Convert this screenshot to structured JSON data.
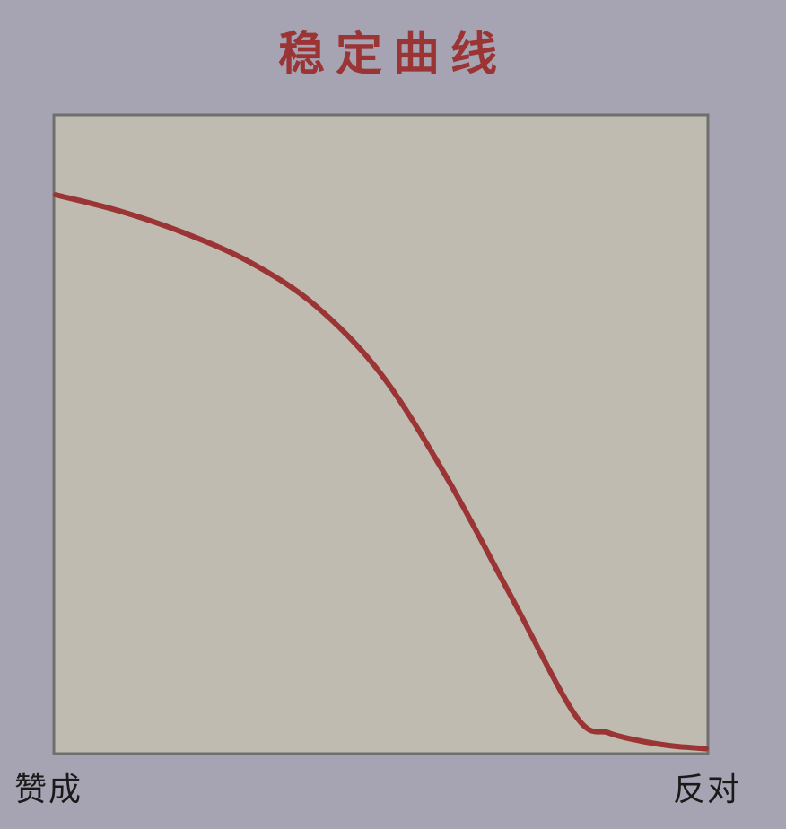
{
  "chart_data": {
    "type": "line",
    "title": "稳定曲线",
    "x_endpoint_labels": [
      "赞成",
      "反对"
    ],
    "xlim": [
      0,
      1
    ],
    "ylim": [
      0,
      1
    ],
    "grid": false,
    "legend": "none",
    "colors": {
      "background": "#a6a4b2",
      "plot_area": "#bfbbb0",
      "frame": "#6f6f6f",
      "line": "#9b3535"
    },
    "series": [
      {
        "x": [
          0.0,
          0.1,
          0.2,
          0.3,
          0.4,
          0.5,
          0.6,
          0.7,
          0.8,
          0.85,
          0.9,
          0.95,
          1.0
        ],
        "y": [
          0.877,
          0.851,
          0.816,
          0.77,
          0.702,
          0.595,
          0.434,
          0.245,
          0.056,
          0.03,
          0.017,
          0.009,
          0.005
        ]
      }
    ]
  }
}
